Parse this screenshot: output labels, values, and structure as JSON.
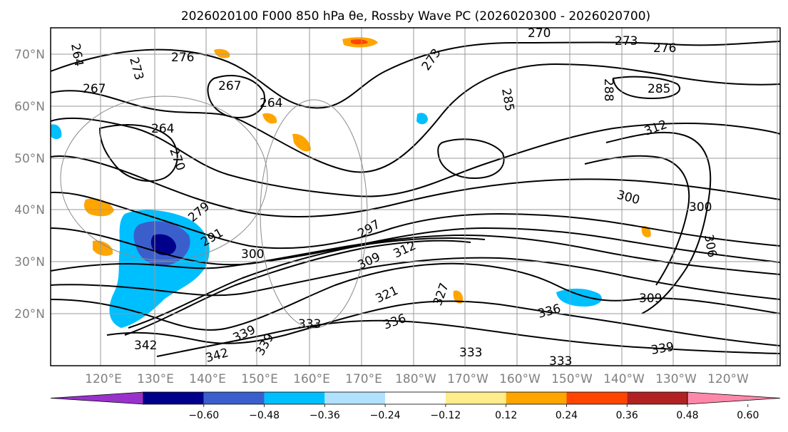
{
  "title": "2026020100 F000 850 hPa θe, Rossby Wave PC (2026020300 - 2026020700)",
  "latitude_labels": [
    "70°N",
    "60°N",
    "50°N",
    "40°N",
    "30°N",
    "20°N"
  ],
  "longitude_labels": [
    "120°E",
    "130°E",
    "140°E",
    "150°E",
    "160°E",
    "170°E",
    "180°W",
    "170°W",
    "160°W",
    "150°W",
    "140°W",
    "130°W",
    "120°W"
  ],
  "contour_labels": [
    "264",
    "273",
    "276",
    "267",
    "267",
    "264",
    "264",
    "270",
    "270",
    "273",
    "276",
    "273",
    "285",
    "288",
    "285",
    "300",
    "300",
    "279",
    "291",
    "297",
    "300",
    "309",
    "312",
    "321",
    "327",
    "333",
    "339",
    "342",
    "342",
    "339",
    "333",
    "333",
    "336",
    "339",
    "309",
    "306",
    "312",
    "336"
  ],
  "colorbar": {
    "labels": [
      "−0.60",
      "−0.48",
      "−0.36",
      "−0.24",
      "−0.12",
      "0.12",
      "0.24",
      "0.36",
      "0.48",
      "0.60"
    ],
    "colors": [
      "#9932cc",
      "#00008b",
      "#3a5fcd",
      "#00bfff",
      "#b0e2ff",
      "#ffffff",
      "#ffec8b",
      "#ffa500",
      "#ff4500",
      "#b22222",
      "#ff88aa"
    ]
  }
}
